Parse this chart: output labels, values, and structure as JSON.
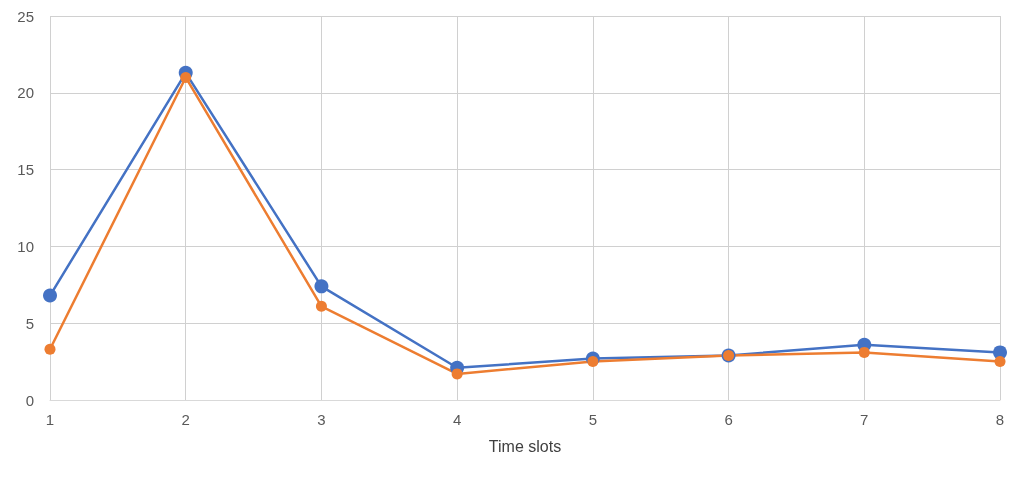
{
  "chart_data": {
    "type": "line",
    "xlabel": "Time slots",
    "x": [
      1,
      2,
      3,
      4,
      5,
      6,
      7,
      8
    ],
    "xlim": [
      1,
      8
    ],
    "xticks": [
      1,
      2,
      3,
      4,
      5,
      6,
      7,
      8
    ],
    "ylim": [
      0,
      25
    ],
    "yticks": [
      0,
      5,
      10,
      15,
      20,
      25
    ],
    "grid": true,
    "marker": "circle",
    "line_style": "solid",
    "series": [
      {
        "color": "#4472c4",
        "values": [
          6.8,
          21.3,
          7.4,
          2.1,
          2.7,
          2.9,
          3.6,
          3.1
        ]
      },
      {
        "color": "#ed7d31",
        "values": [
          3.3,
          21.0,
          6.1,
          1.7,
          2.5,
          2.9,
          3.1,
          2.5
        ]
      }
    ]
  }
}
